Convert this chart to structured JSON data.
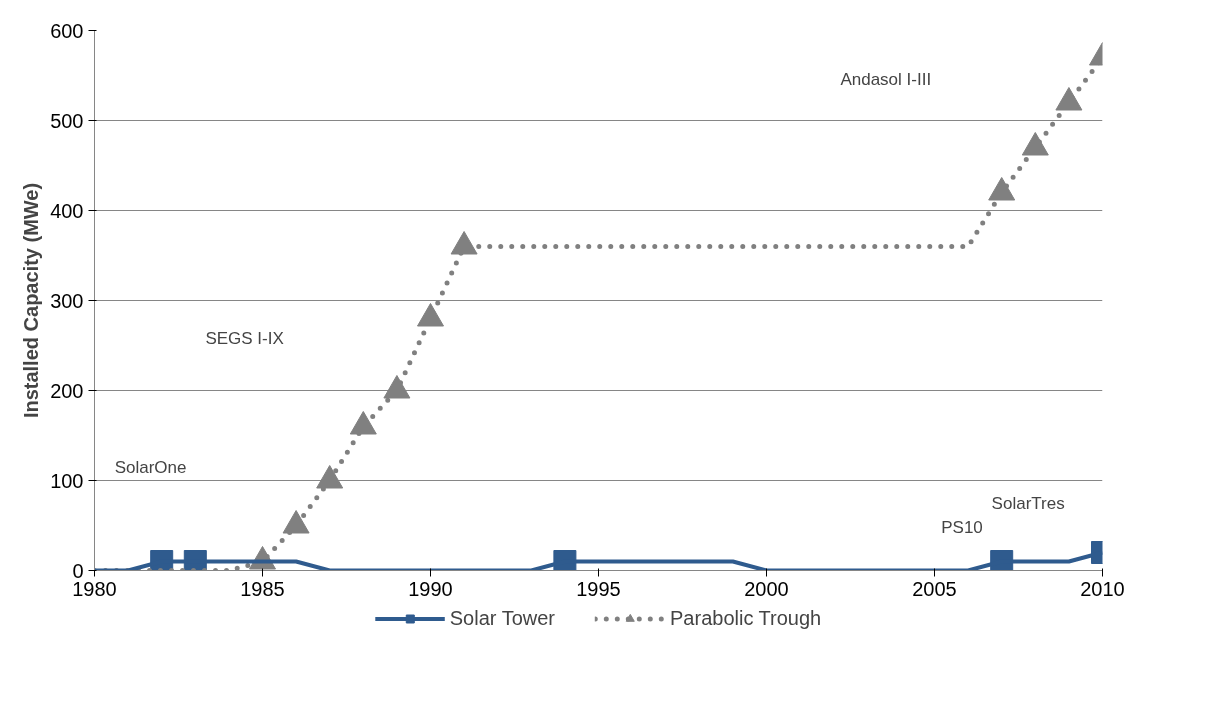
{
  "chart_data": {
    "type": "line",
    "ylabel": "Installed Capacity (MWe)",
    "x": [
      1980,
      1981,
      1982,
      1983,
      1984,
      1985,
      1986,
      1987,
      1988,
      1989,
      1990,
      1991,
      1992,
      1993,
      1994,
      1995,
      1996,
      1997,
      1998,
      1999,
      2000,
      2001,
      2002,
      2003,
      2004,
      2005,
      2006,
      2007,
      2008,
      2009,
      2010
    ],
    "series": [
      {
        "name": "Solar Tower",
        "color": "#2f5b8e",
        "line_style": "solid",
        "marker": "none",
        "values": [
          0,
          0,
          10,
          10,
          10,
          10,
          10,
          0,
          0,
          0,
          0,
          0,
          0,
          0,
          10,
          10,
          10,
          10,
          10,
          10,
          0,
          0,
          0,
          0,
          0,
          0,
          0,
          10,
          10,
          10,
          20
        ]
      },
      {
        "name": "Parabolic Trough",
        "color": "#808080",
        "line_style": "dotted",
        "marker": "none",
        "values": [
          0,
          0,
          0,
          0,
          0,
          10,
          50,
          100,
          160,
          200,
          280,
          360,
          360,
          360,
          360,
          360,
          360,
          360,
          360,
          360,
          360,
          360,
          360,
          360,
          360,
          360,
          360,
          420,
          470,
          520,
          570
        ]
      },
      {
        "type": "scatter",
        "color": "#2f5b8e",
        "marker": "square",
        "values": [
          null,
          null,
          10,
          10,
          null,
          null,
          null,
          null,
          null,
          null,
          null,
          null,
          null,
          null,
          10,
          null,
          null,
          null,
          null,
          null,
          null,
          null,
          null,
          null,
          null,
          null,
          null,
          10,
          null,
          null,
          20
        ]
      },
      {
        "type": "scatter",
        "color": "#808080",
        "marker": "triangle",
        "values": [
          null,
          null,
          null,
          null,
          null,
          10,
          50,
          100,
          160,
          200,
          280,
          360,
          null,
          null,
          null,
          null,
          null,
          null,
          null,
          null,
          null,
          null,
          null,
          null,
          null,
          null,
          null,
          420,
          470,
          520,
          570
        ]
      }
    ],
    "xlim": [
      1980,
      2010
    ],
    "xticks": [
      1980,
      1985,
      1990,
      1995,
      2000,
      2005,
      2010
    ],
    "ylim": [
      0,
      600
    ],
    "yticks": [
      0,
      100,
      200,
      300,
      400,
      500,
      600
    ],
    "grid": "y",
    "legend": "bottom",
    "annotations": [
      "SolarOne",
      "SEGS I-IX",
      "Andasol I-III",
      "PS10",
      "SolarTres"
    ]
  }
}
